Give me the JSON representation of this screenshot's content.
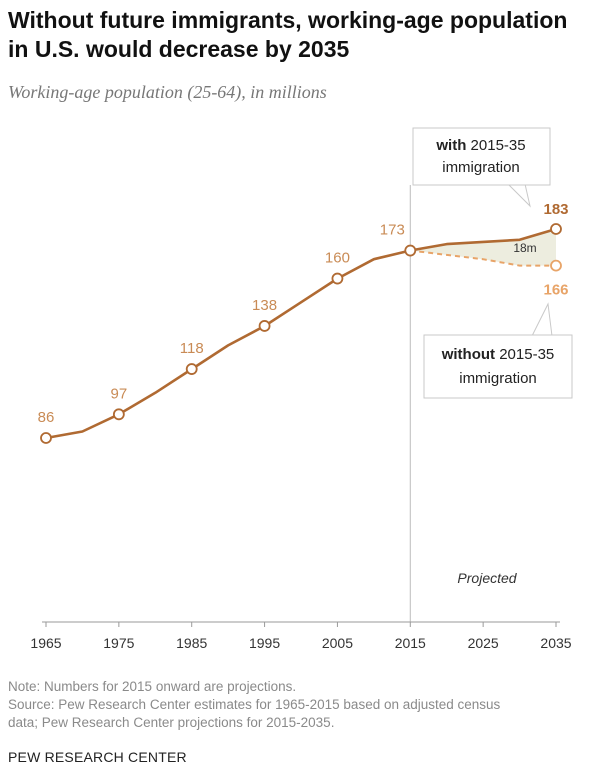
{
  "header": {
    "title": "Without future immigrants, working-age population in U.S. would decrease by 2035",
    "subtitle": "Working-age population (25-64), in millions"
  },
  "footer": {
    "note": "Note: Numbers for 2015 onward are projections.",
    "source_line1": "Source: Pew Research Center estimates for 1965-2015 based on adjusted census",
    "source_line2": "data; Pew Research Center projections for 2015-2035.",
    "credit": "PEW RESEARCH CENTER"
  },
  "colors": {
    "with_line": "#b06a32",
    "without_line": "#e8a468",
    "label_historic": "#c98b55",
    "gap_fill": "#ededdf",
    "axis": "#9a9a9a",
    "divider": "#bdbdbd"
  },
  "chart_data": {
    "type": "line",
    "title": "Without future immigrants, working-age population in U.S. would decrease by 2035",
    "subtitle": "Working-age population (25-64), in millions",
    "x_ticks": [
      1965,
      1975,
      1985,
      1995,
      2005,
      2015,
      2025,
      2035
    ],
    "xlim": [
      1965,
      2035
    ],
    "ylim": [
      40,
      195
    ],
    "grid": false,
    "projection_start": 2015,
    "projection_label": "Projected",
    "series": [
      {
        "key": "historic",
        "style": "solid",
        "points": [
          [
            1965,
            86
          ],
          [
            1970,
            89
          ],
          [
            1975,
            97
          ],
          [
            1980,
            107
          ],
          [
            1985,
            118
          ],
          [
            1990,
            129
          ],
          [
            1995,
            138
          ],
          [
            2000,
            149
          ],
          [
            2005,
            160
          ],
          [
            2010,
            169
          ],
          [
            2015,
            173
          ]
        ],
        "marked_points": [
          1965,
          1975,
          1985,
          1995,
          2005,
          2015
        ],
        "labels": [
          {
            "x": 1965,
            "value": 86,
            "text": "86"
          },
          {
            "x": 1975,
            "value": 97,
            "text": "97"
          },
          {
            "x": 1985,
            "value": 118,
            "text": "118"
          },
          {
            "x": 1995,
            "value": 138,
            "text": "138"
          },
          {
            "x": 2005,
            "value": 160,
            "text": "160"
          },
          {
            "x": 2015,
            "value": 173,
            "text": "173"
          }
        ]
      },
      {
        "key": "with",
        "style": "solid",
        "points": [
          [
            2015,
            173
          ],
          [
            2020,
            176
          ],
          [
            2025,
            177
          ],
          [
            2030,
            178
          ],
          [
            2035,
            183
          ]
        ],
        "end_label": "183"
      },
      {
        "key": "without",
        "style": "dashed",
        "points": [
          [
            2015,
            173
          ],
          [
            2020,
            171
          ],
          [
            2025,
            169
          ],
          [
            2030,
            166
          ],
          [
            2035,
            166
          ]
        ],
        "end_label": "166"
      }
    ],
    "gap_label": "18m",
    "callouts": {
      "with": {
        "bold": "with",
        "rest": " 2015-35",
        "line2": "immigration"
      },
      "without": {
        "bold": "without",
        "rest": " 2015-35",
        "line2": "immigration"
      }
    }
  }
}
